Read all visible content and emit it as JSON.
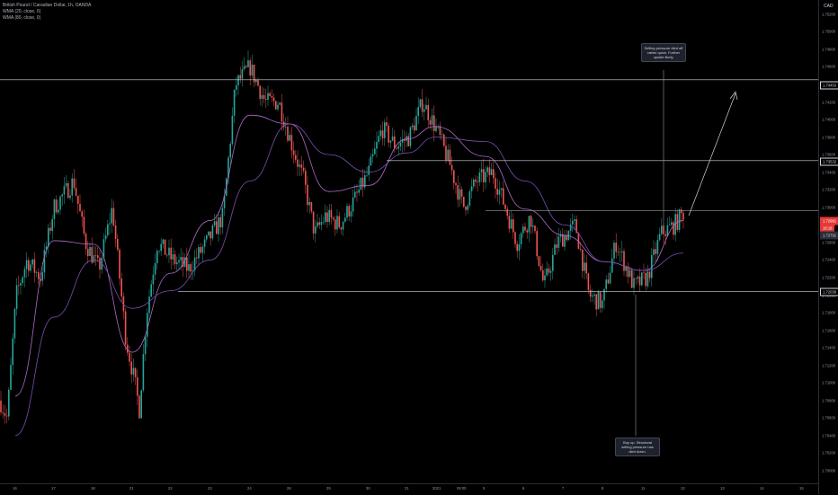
{
  "legend": {
    "title": "British Pound / Canadian Dollar, 1h, OANDA",
    "wma1": "WMA (20, close, 0)",
    "wma2": "WMA (80, close, 0)"
  },
  "currency": "CAD",
  "price_axis": [
    "1.75200",
    "1.75000",
    "1.74800",
    "1.74600",
    "1.74400",
    "1.74200",
    "1.74000",
    "1.73800",
    "1.73600",
    "1.73400",
    "1.73200",
    "1.73000",
    "1.72800",
    "1.72600",
    "1.72400",
    "1.72200",
    "1.72000",
    "1.71800",
    "1.71600",
    "1.71400",
    "1.71200",
    "1.71000",
    "1.70800",
    "1.70600",
    "1.70400",
    "1.70200",
    "1.70000"
  ],
  "price_tags": {
    "resistance_top": "1.74453",
    "resistance_mid": "1.73532",
    "current": "1.72961",
    "countdown": "18:18",
    "wma_tag": "1.72791",
    "support": "1.72039"
  },
  "time_axis": [
    "16",
    "17",
    "18",
    "21",
    "22",
    "23",
    "24",
    "28",
    "29",
    "30",
    "31",
    "2021",
    "09:00",
    "5",
    "6",
    "7",
    "8",
    "11",
    "12",
    "13",
    "14",
    "15"
  ],
  "annotations": {
    "top_note": "Selling pressure died off rather quick. Further upside likely.",
    "bottom_note": "Buy up. Structural selling pressure has died down."
  },
  "colors": {
    "background": "#000000",
    "up": "#26a69a",
    "down": "#ef5350",
    "wma20": "#b06bc7",
    "wma80": "#7a4fb3",
    "line": "#d1d4dc",
    "current_price": "#e53935"
  },
  "chart_data": {
    "type": "line",
    "title": "British Pound / Canadian Dollar, 1h, OANDA",
    "ylim": [
      1.7,
      1.753
    ],
    "x_ticks": [
      "16",
      "17",
      "18",
      "21",
      "22",
      "23",
      "24",
      "28",
      "29",
      "30",
      "31",
      "2021",
      "09:00",
      "5",
      "6",
      "7",
      "8",
      "11",
      "12",
      "13",
      "14",
      "15"
    ],
    "series": [
      {
        "name": "WMA (20, close, 0)",
        "x": [
          "16",
          "17",
          "18",
          "21",
          "22",
          "23",
          "24",
          "28",
          "29",
          "30",
          "31",
          "2021",
          "5",
          "6",
          "7",
          "8",
          "11",
          "12"
        ],
        "values": [
          1.7085,
          1.7262,
          1.7258,
          1.7135,
          1.7225,
          1.7285,
          1.7405,
          1.7395,
          1.7318,
          1.7325,
          1.7378,
          1.7392,
          1.7358,
          1.7298,
          1.7268,
          1.7238,
          1.7228,
          1.7285
        ]
      },
      {
        "name": "WMA (80, close, 0)",
        "x": [
          "16",
          "17",
          "18",
          "21",
          "22",
          "23",
          "24",
          "28",
          "29",
          "30",
          "31",
          "2021",
          "5",
          "6",
          "7",
          "8",
          "11",
          "12"
        ],
        "values": [
          1.704,
          1.7175,
          1.724,
          1.7185,
          1.7205,
          1.724,
          1.733,
          1.7395,
          1.736,
          1.734,
          1.7362,
          1.738,
          1.7375,
          1.733,
          1.728,
          1.7238,
          1.7228,
          1.7248
        ]
      }
    ],
    "levels": [
      1.74453,
      1.73532,
      1.72961,
      1.72039
    ]
  }
}
